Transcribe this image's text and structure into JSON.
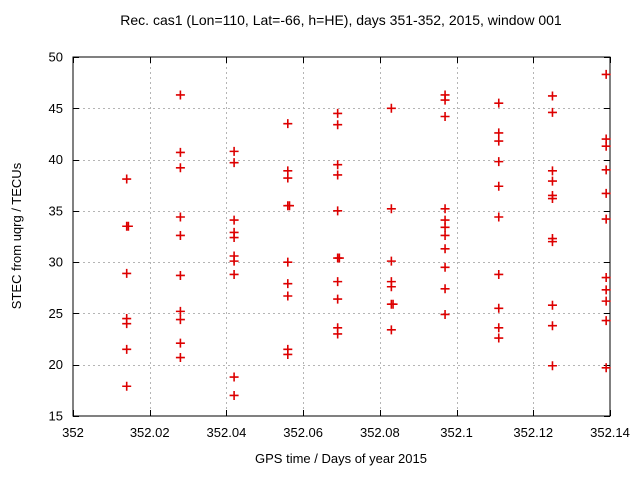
{
  "chart_data": {
    "type": "scatter",
    "title": "Rec. cas1 (Lon=110, Lat=-66, h=HE), days 351-352, 2015, window 001",
    "xlabel": "GPS time / Days of year 2015",
    "ylabel": "STEC from uqrg / TECUs",
    "xlim": [
      352.0,
      352.14
    ],
    "ylim": [
      15,
      50
    ],
    "grid": true,
    "legend": "none",
    "marker": "plus",
    "marker_color": "#dd0000",
    "grid_color": "#b5b5b5",
    "border_color": "#000000",
    "xticks": [
      352.0,
      352.02,
      352.04,
      352.06,
      352.08,
      352.1,
      352.12,
      352.14
    ],
    "xtick_labels": [
      "352",
      "352.02",
      "352.04",
      "352.06",
      "352.08",
      "352.1",
      "352.12",
      "352.14"
    ],
    "yticks": [
      15,
      20,
      25,
      30,
      35,
      40,
      45,
      50
    ],
    "ytick_labels": [
      "15",
      "20",
      "25",
      "30",
      "35",
      "40",
      "45",
      "50"
    ],
    "clusters": [
      {
        "t": 352.014,
        "stec": [
          38.1,
          33.5,
          28.9,
          24.5,
          24.0,
          21.5,
          17.9
        ],
        "double_stec": [
          33.5
        ]
      },
      {
        "t": 352.028,
        "stec": [
          46.3,
          40.7,
          39.2,
          34.4,
          32.6,
          28.7,
          25.2,
          24.4,
          22.1,
          20.7
        ],
        "double_stec": []
      },
      {
        "t": 352.042,
        "stec": [
          40.8,
          39.7,
          34.1,
          32.9,
          32.4,
          30.6,
          30.1,
          28.8,
          18.8,
          17.0
        ],
        "double_stec": []
      },
      {
        "t": 352.056,
        "stec": [
          43.5,
          38.9,
          38.2,
          35.5,
          30.0,
          27.9,
          26.7,
          21.5,
          21.0
        ],
        "double_stec": [
          35.5
        ]
      },
      {
        "t": 352.069,
        "stec": [
          44.5,
          43.4,
          39.5,
          38.5,
          35.0,
          30.4,
          28.1,
          26.4,
          23.6,
          23.0
        ],
        "double_stec": [
          30.4
        ]
      },
      {
        "t": 352.083,
        "stec": [
          45.0,
          35.2,
          30.1,
          28.1,
          27.6,
          25.9,
          23.4
        ],
        "double_stec": [
          25.9
        ]
      },
      {
        "t": 352.097,
        "stec": [
          46.3,
          45.8,
          44.2,
          35.2,
          34.1,
          33.4,
          32.6,
          31.3,
          29.5,
          27.4,
          24.9
        ],
        "double_stec": []
      },
      {
        "t": 352.111,
        "stec": [
          45.5,
          42.6,
          41.8,
          39.8,
          37.4,
          34.4,
          28.8,
          25.5,
          23.6,
          22.6
        ],
        "double_stec": []
      },
      {
        "t": 352.125,
        "stec": [
          46.2,
          44.6,
          38.9,
          37.9,
          36.5,
          36.2,
          32.3,
          32.0,
          25.8,
          23.8,
          19.9
        ],
        "double_stec": []
      },
      {
        "t": 352.139,
        "stec": [
          48.3,
          42.0,
          41.3,
          39.0,
          36.7,
          34.2,
          28.5,
          27.3,
          26.2,
          24.3,
          19.7
        ],
        "double_stec": []
      }
    ]
  }
}
